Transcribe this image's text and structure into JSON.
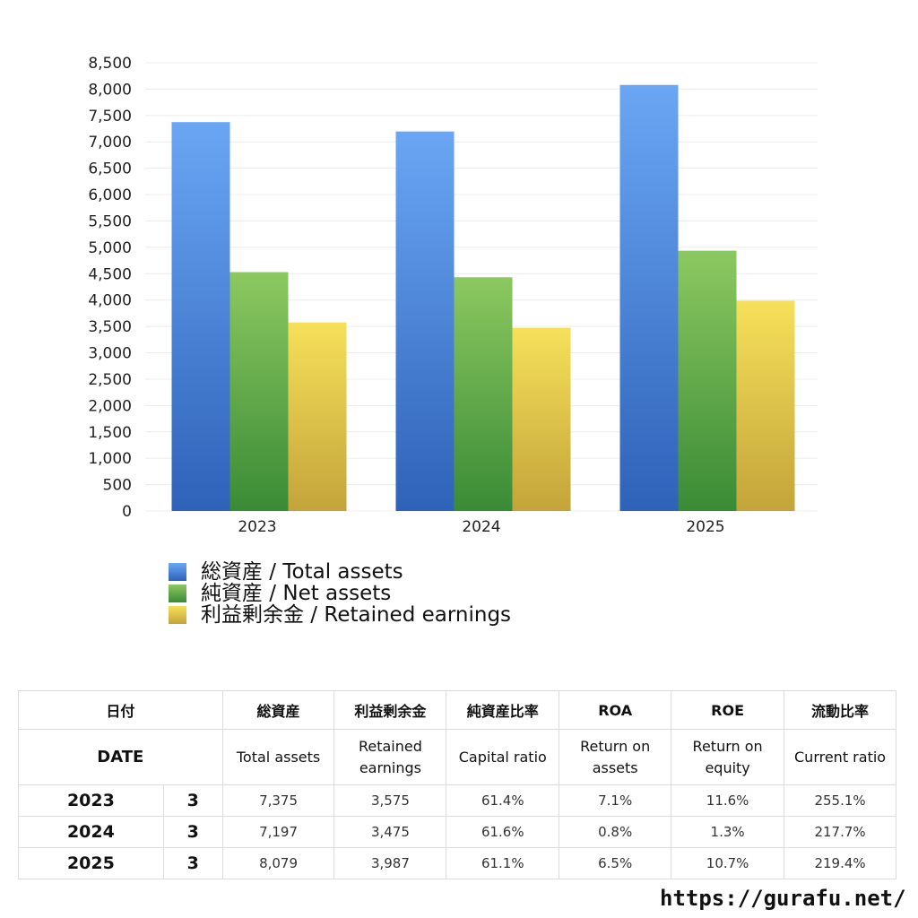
{
  "chart_data": {
    "type": "bar",
    "categories": [
      "2023",
      "2024",
      "2025"
    ],
    "series": [
      {
        "name": "総資産 / Total assets",
        "values": [
          7375,
          7197,
          8079
        ],
        "gradient": [
          "#6aa6f4",
          "#2f62b9"
        ]
      },
      {
        "name": "純資産 / Net assets",
        "values": [
          4530,
          4433,
          4936
        ],
        "gradient": [
          "#8cc860",
          "#3a8b36"
        ]
      },
      {
        "name": "利益剰余金 / Retained earnings",
        "values": [
          3575,
          3475,
          3987
        ],
        "gradient": [
          "#f6e05a",
          "#c3a43a"
        ]
      }
    ],
    "ylim": [
      0,
      8500
    ],
    "yticks": [
      "0",
      "500",
      "1,000",
      "1,500",
      "2,000",
      "2,500",
      "3,000",
      "3,500",
      "4,000",
      "4,500",
      "5,000",
      "5,500",
      "6,000",
      "6,500",
      "7,000",
      "7,500",
      "8,000",
      "8,500"
    ],
    "grid": true,
    "legend_position": "bottom-left"
  },
  "table": {
    "headers_jp": [
      "日付",
      "総資産",
      "利益剰余金",
      "純資産比率",
      "ROA",
      "ROE",
      "流動比率"
    ],
    "headers_en": [
      "DATE",
      "Total assets",
      "Retained earnings",
      "Capital ratio",
      "Return on assets",
      "Return on equity",
      "Current ratio"
    ],
    "rows": [
      {
        "year": "2023",
        "month": "3",
        "total_assets": "7,375",
        "retained_earnings": "3,575",
        "capital_ratio": "61.4%",
        "roa": "7.1%",
        "roe": "11.6%",
        "current_ratio": "255.1%"
      },
      {
        "year": "2024",
        "month": "3",
        "total_assets": "7,197",
        "retained_earnings": "3,475",
        "capital_ratio": "61.6%",
        "roa": "0.8%",
        "roe": "1.3%",
        "current_ratio": "217.7%"
      },
      {
        "year": "2025",
        "month": "3",
        "total_assets": "8,079",
        "retained_earnings": "3,987",
        "capital_ratio": "61.1%",
        "roa": "6.5%",
        "roe": "10.7%",
        "current_ratio": "219.4%"
      }
    ]
  },
  "source_url": "https://gurafu.net/"
}
